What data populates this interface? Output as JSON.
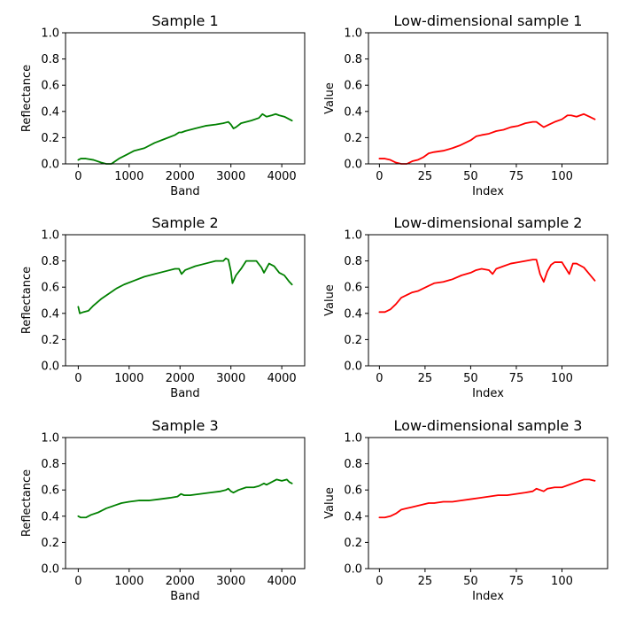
{
  "chart_data": [
    {
      "type": "line",
      "title": "Sample 1",
      "xlabel": "Band",
      "ylabel": "Reflectance",
      "xlim": [
        -250,
        4450
      ],
      "ylim": [
        0.0,
        1.0
      ],
      "xticks": [
        0,
        1000,
        2000,
        3000,
        4000
      ],
      "yticks": [
        0.0,
        0.2,
        0.4,
        0.6,
        0.8,
        1.0
      ],
      "xtick_labels": [
        "0",
        "1000",
        "2000",
        "3000",
        "4000"
      ],
      "ytick_labels": [
        "0.0",
        "0.2",
        "0.4",
        "0.6",
        "0.8",
        "1.0"
      ],
      "grid": false,
      "color": "#008000",
      "series": [
        {
          "x": [
            0,
            50,
            150,
            300,
            450,
            550,
            650,
            800,
            950,
            1100,
            1300,
            1500,
            1700,
            1900,
            1980,
            2030,
            2100,
            2300,
            2500,
            2700,
            2850,
            2950,
            3000,
            3050,
            3100,
            3200,
            3400,
            3550,
            3620,
            3700,
            3800,
            3880,
            3950,
            4050,
            4150,
            4200
          ],
          "y": [
            0.03,
            0.04,
            0.04,
            0.03,
            0.01,
            0.0,
            0.0,
            0.04,
            0.07,
            0.1,
            0.12,
            0.16,
            0.19,
            0.22,
            0.24,
            0.24,
            0.25,
            0.27,
            0.29,
            0.3,
            0.31,
            0.32,
            0.3,
            0.27,
            0.28,
            0.31,
            0.33,
            0.35,
            0.38,
            0.36,
            0.37,
            0.38,
            0.37,
            0.36,
            0.34,
            0.33
          ]
        }
      ]
    },
    {
      "type": "line",
      "title": "Low-dimensional sample 1",
      "xlabel": "Index",
      "ylabel": "Value",
      "xlim": [
        -6,
        125
      ],
      "ylim": [
        0.0,
        1.0
      ],
      "xticks": [
        0,
        25,
        50,
        75,
        100
      ],
      "yticks": [
        0.0,
        0.2,
        0.4,
        0.6,
        0.8,
        1.0
      ],
      "xtick_labels": [
        "0",
        "25",
        "50",
        "75",
        "100"
      ],
      "ytick_labels": [
        "0.0",
        "0.2",
        "0.4",
        "0.6",
        "0.8",
        "1.0"
      ],
      "grid": false,
      "color": "#ff0000",
      "series": [
        {
          "x": [
            0,
            3,
            6,
            9,
            12,
            15,
            18,
            21,
            24,
            27,
            30,
            35,
            40,
            44,
            47,
            50,
            53,
            56,
            60,
            64,
            68,
            72,
            76,
            80,
            84,
            86,
            88,
            90,
            93,
            96,
            100,
            103,
            105,
            108,
            112,
            115,
            118
          ],
          "y": [
            0.04,
            0.04,
            0.03,
            0.01,
            0.0,
            0.0,
            0.02,
            0.03,
            0.05,
            0.08,
            0.09,
            0.1,
            0.12,
            0.14,
            0.16,
            0.18,
            0.21,
            0.22,
            0.23,
            0.25,
            0.26,
            0.28,
            0.29,
            0.31,
            0.32,
            0.32,
            0.3,
            0.28,
            0.3,
            0.32,
            0.34,
            0.37,
            0.37,
            0.36,
            0.38,
            0.36,
            0.34
          ]
        }
      ]
    },
    {
      "type": "line",
      "title": "Sample 2",
      "xlabel": "Band",
      "ylabel": "Reflectance",
      "xlim": [
        -250,
        4450
      ],
      "ylim": [
        0.0,
        1.0
      ],
      "xticks": [
        0,
        1000,
        2000,
        3000,
        4000
      ],
      "yticks": [
        0.0,
        0.2,
        0.4,
        0.6,
        0.8,
        1.0
      ],
      "xtick_labels": [
        "0",
        "1000",
        "2000",
        "3000",
        "4000"
      ],
      "ytick_labels": [
        "0.0",
        "0.2",
        "0.4",
        "0.6",
        "0.8",
        "1.0"
      ],
      "grid": false,
      "color": "#008000",
      "series": [
        {
          "x": [
            0,
            30,
            100,
            200,
            300,
            450,
            600,
            750,
            900,
            1100,
            1300,
            1500,
            1700,
            1900,
            1980,
            2030,
            2100,
            2300,
            2500,
            2700,
            2850,
            2900,
            2950,
            3000,
            3030,
            3100,
            3200,
            3300,
            3500,
            3600,
            3650,
            3750,
            3850,
            3950,
            4050,
            4150,
            4200
          ],
          "y": [
            0.45,
            0.4,
            0.41,
            0.42,
            0.46,
            0.51,
            0.55,
            0.59,
            0.62,
            0.65,
            0.68,
            0.7,
            0.72,
            0.74,
            0.74,
            0.7,
            0.73,
            0.76,
            0.78,
            0.8,
            0.8,
            0.82,
            0.81,
            0.72,
            0.63,
            0.69,
            0.74,
            0.8,
            0.8,
            0.75,
            0.71,
            0.78,
            0.76,
            0.71,
            0.69,
            0.64,
            0.62
          ]
        }
      ]
    },
    {
      "type": "line",
      "title": "Low-dimensional sample 2",
      "xlabel": "Index",
      "ylabel": "Value",
      "xlim": [
        -6,
        125
      ],
      "ylim": [
        0.0,
        1.0
      ],
      "xticks": [
        0,
        25,
        50,
        75,
        100
      ],
      "yticks": [
        0.0,
        0.2,
        0.4,
        0.6,
        0.8,
        1.0
      ],
      "xtick_labels": [
        "0",
        "25",
        "50",
        "75",
        "100"
      ],
      "ytick_labels": [
        "0.0",
        "0.2",
        "0.4",
        "0.6",
        "0.8",
        "1.0"
      ],
      "grid": false,
      "color": "#ff0000",
      "series": [
        {
          "x": [
            0,
            3,
            6,
            9,
            12,
            15,
            18,
            21,
            24,
            27,
            30,
            35,
            40,
            45,
            50,
            53,
            56,
            60,
            62,
            64,
            68,
            72,
            76,
            80,
            84,
            86,
            88,
            90,
            92,
            94,
            96,
            100,
            104,
            106,
            108,
            112,
            115,
            118
          ],
          "y": [
            0.41,
            0.41,
            0.43,
            0.47,
            0.52,
            0.54,
            0.56,
            0.57,
            0.59,
            0.61,
            0.63,
            0.64,
            0.66,
            0.69,
            0.71,
            0.73,
            0.74,
            0.73,
            0.7,
            0.74,
            0.76,
            0.78,
            0.79,
            0.8,
            0.81,
            0.81,
            0.7,
            0.64,
            0.72,
            0.77,
            0.79,
            0.79,
            0.7,
            0.78,
            0.78,
            0.75,
            0.7,
            0.65
          ]
        }
      ]
    },
    {
      "type": "line",
      "title": "Sample 3",
      "xlabel": "Band",
      "ylabel": "Reflectance",
      "xlim": [
        -250,
        4450
      ],
      "ylim": [
        0.0,
        1.0
      ],
      "xticks": [
        0,
        1000,
        2000,
        3000,
        4000
      ],
      "yticks": [
        0.0,
        0.2,
        0.4,
        0.6,
        0.8,
        1.0
      ],
      "xtick_labels": [
        "0",
        "1000",
        "2000",
        "3000",
        "4000"
      ],
      "ytick_labels": [
        "0.0",
        "0.2",
        "0.4",
        "0.6",
        "0.8",
        "1.0"
      ],
      "grid": false,
      "color": "#008000",
      "series": [
        {
          "x": [
            0,
            50,
            150,
            250,
            400,
            550,
            700,
            850,
            1000,
            1200,
            1400,
            1600,
            1800,
            1950,
            2020,
            2080,
            2200,
            2400,
            2600,
            2800,
            2900,
            2950,
            3000,
            3050,
            3150,
            3300,
            3450,
            3550,
            3650,
            3700,
            3800,
            3900,
            4000,
            4100,
            4150,
            4200
          ],
          "y": [
            0.4,
            0.39,
            0.39,
            0.41,
            0.43,
            0.46,
            0.48,
            0.5,
            0.51,
            0.52,
            0.52,
            0.53,
            0.54,
            0.55,
            0.57,
            0.56,
            0.56,
            0.57,
            0.58,
            0.59,
            0.6,
            0.61,
            0.59,
            0.58,
            0.6,
            0.62,
            0.62,
            0.63,
            0.65,
            0.64,
            0.66,
            0.68,
            0.67,
            0.68,
            0.66,
            0.65
          ]
        }
      ]
    },
    {
      "type": "line",
      "title": "Low-dimensional sample 3",
      "xlabel": "Index",
      "ylabel": "Value",
      "xlim": [
        -6,
        125
      ],
      "ylim": [
        0.0,
        1.0
      ],
      "xticks": [
        0,
        25,
        50,
        75,
        100
      ],
      "yticks": [
        0.0,
        0.2,
        0.4,
        0.6,
        0.8,
        1.0
      ],
      "xtick_labels": [
        "0",
        "25",
        "50",
        "75",
        "100"
      ],
      "ytick_labels": [
        "0.0",
        "0.2",
        "0.4",
        "0.6",
        "0.8",
        "1.0"
      ],
      "grid": false,
      "color": "#ff0000",
      "series": [
        {
          "x": [
            0,
            3,
            6,
            9,
            12,
            15,
            18,
            21,
            24,
            27,
            30,
            35,
            40,
            45,
            50,
            55,
            60,
            65,
            70,
            75,
            80,
            84,
            86,
            88,
            90,
            92,
            96,
            100,
            104,
            108,
            110,
            112,
            115,
            118
          ],
          "y": [
            0.39,
            0.39,
            0.4,
            0.42,
            0.45,
            0.46,
            0.47,
            0.48,
            0.49,
            0.5,
            0.5,
            0.51,
            0.51,
            0.52,
            0.53,
            0.54,
            0.55,
            0.56,
            0.56,
            0.57,
            0.58,
            0.59,
            0.61,
            0.6,
            0.59,
            0.61,
            0.62,
            0.62,
            0.64,
            0.66,
            0.67,
            0.68,
            0.68,
            0.67
          ]
        }
      ]
    }
  ]
}
